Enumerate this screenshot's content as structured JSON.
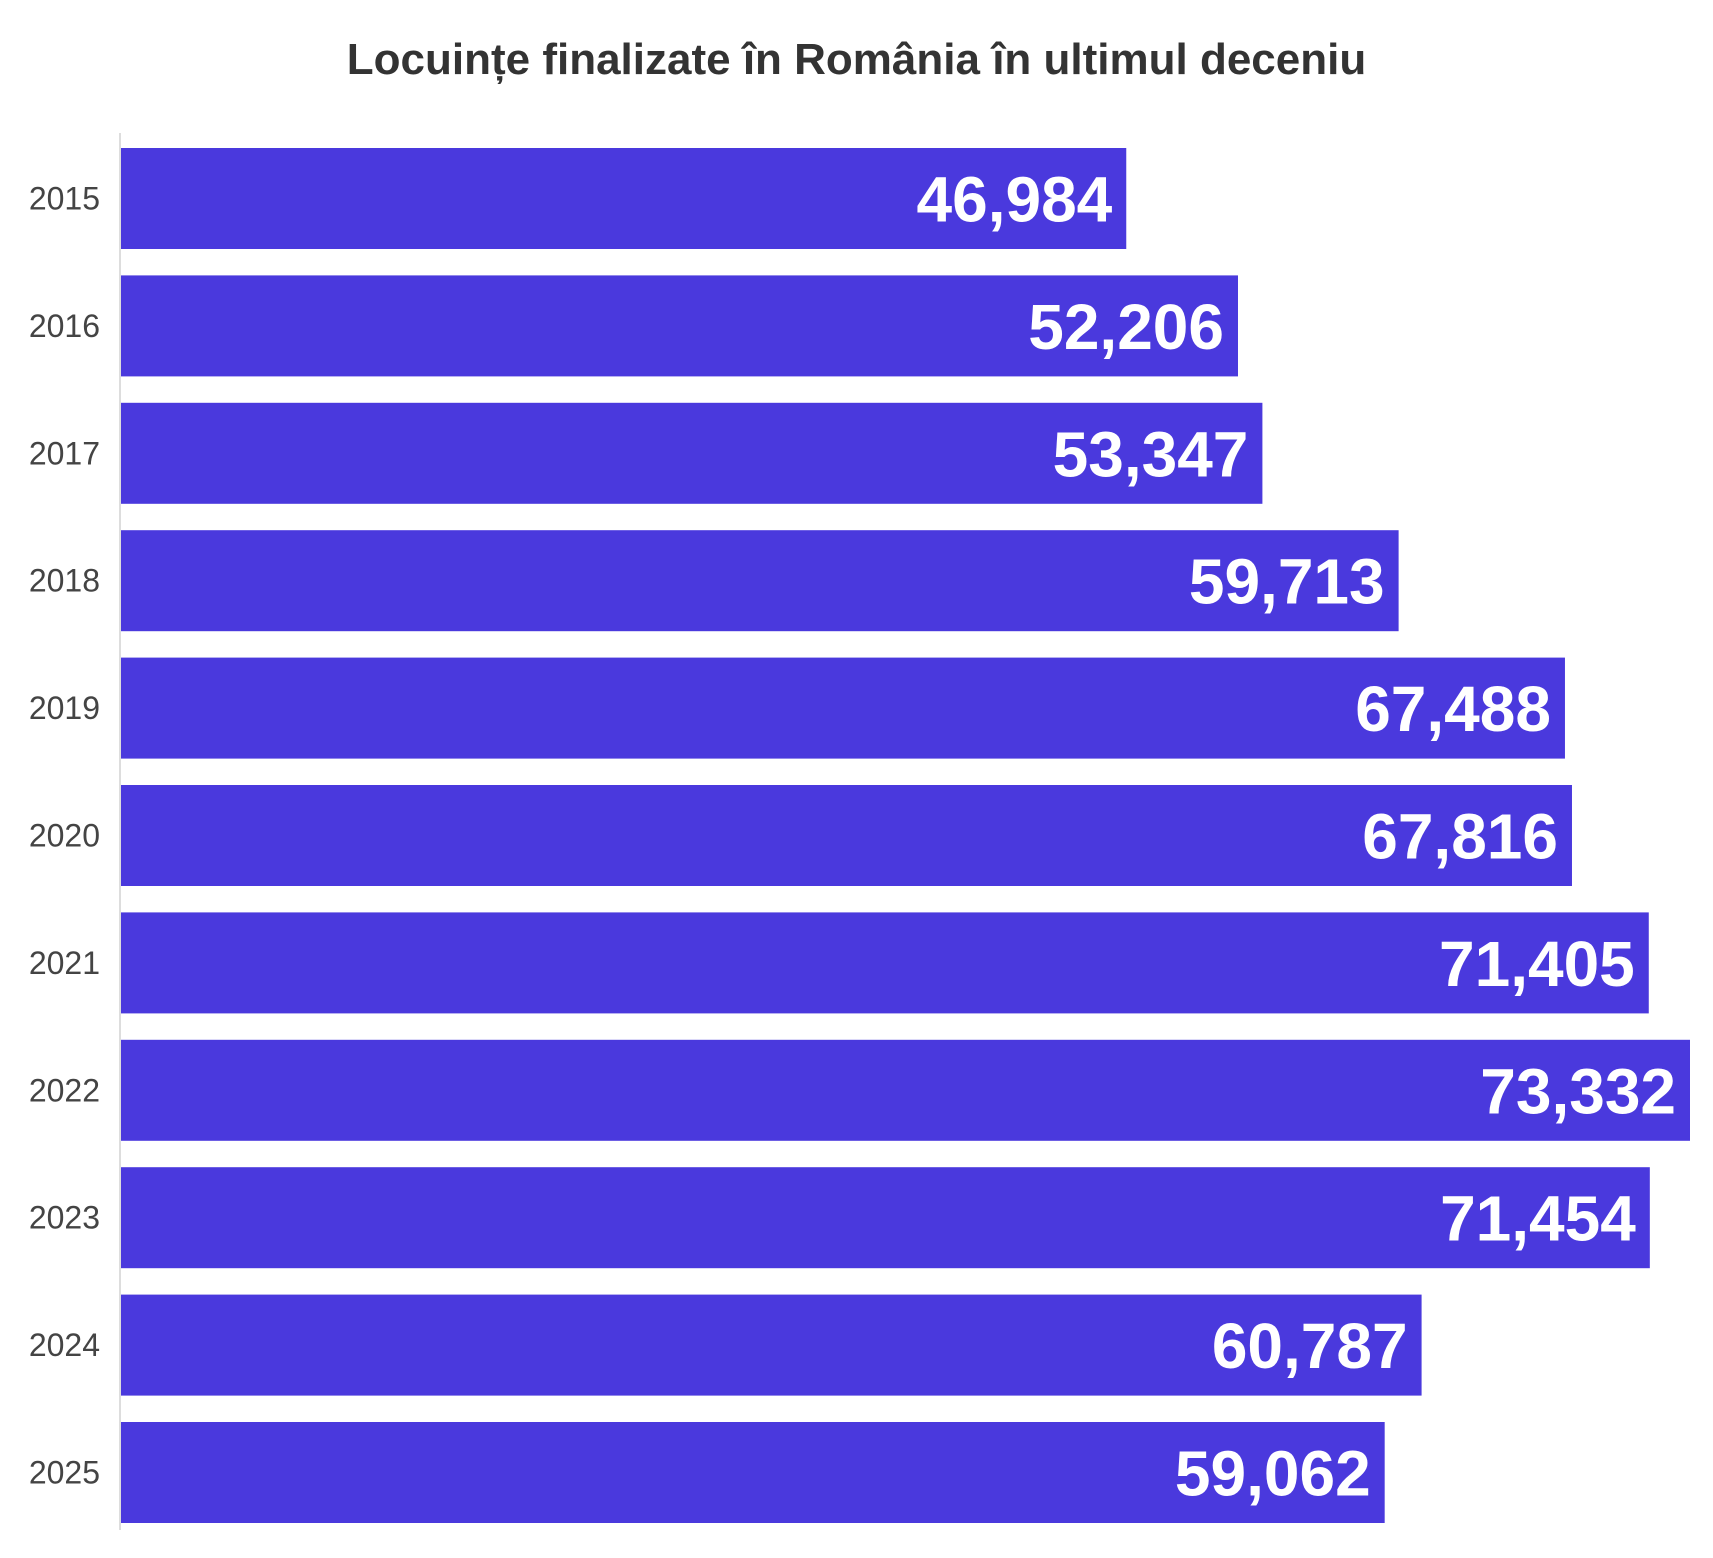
{
  "chart_data": {
    "type": "bar",
    "orientation": "horizontal",
    "title": "Locuințe finalizate în România în ultimul deceniu",
    "xlabel": "",
    "ylabel": "",
    "categories": [
      "2015",
      "2016",
      "2017",
      "2018",
      "2019",
      "2020",
      "2021",
      "2022",
      "2023",
      "2024",
      "2025"
    ],
    "values": [
      46984,
      52206,
      53347,
      59713,
      67488,
      67816,
      71405,
      73332,
      71454,
      60787,
      59062
    ],
    "data_labels": [
      "46,984",
      "52,206",
      "53,347",
      "59,713",
      "67,488",
      "67,816",
      "71,405",
      "73,332",
      "71,454",
      "60,787",
      "59,062"
    ],
    "xlim": [
      0,
      73332
    ],
    "grid": false,
    "legend": "none",
    "bar_color": "#4a39dd"
  }
}
